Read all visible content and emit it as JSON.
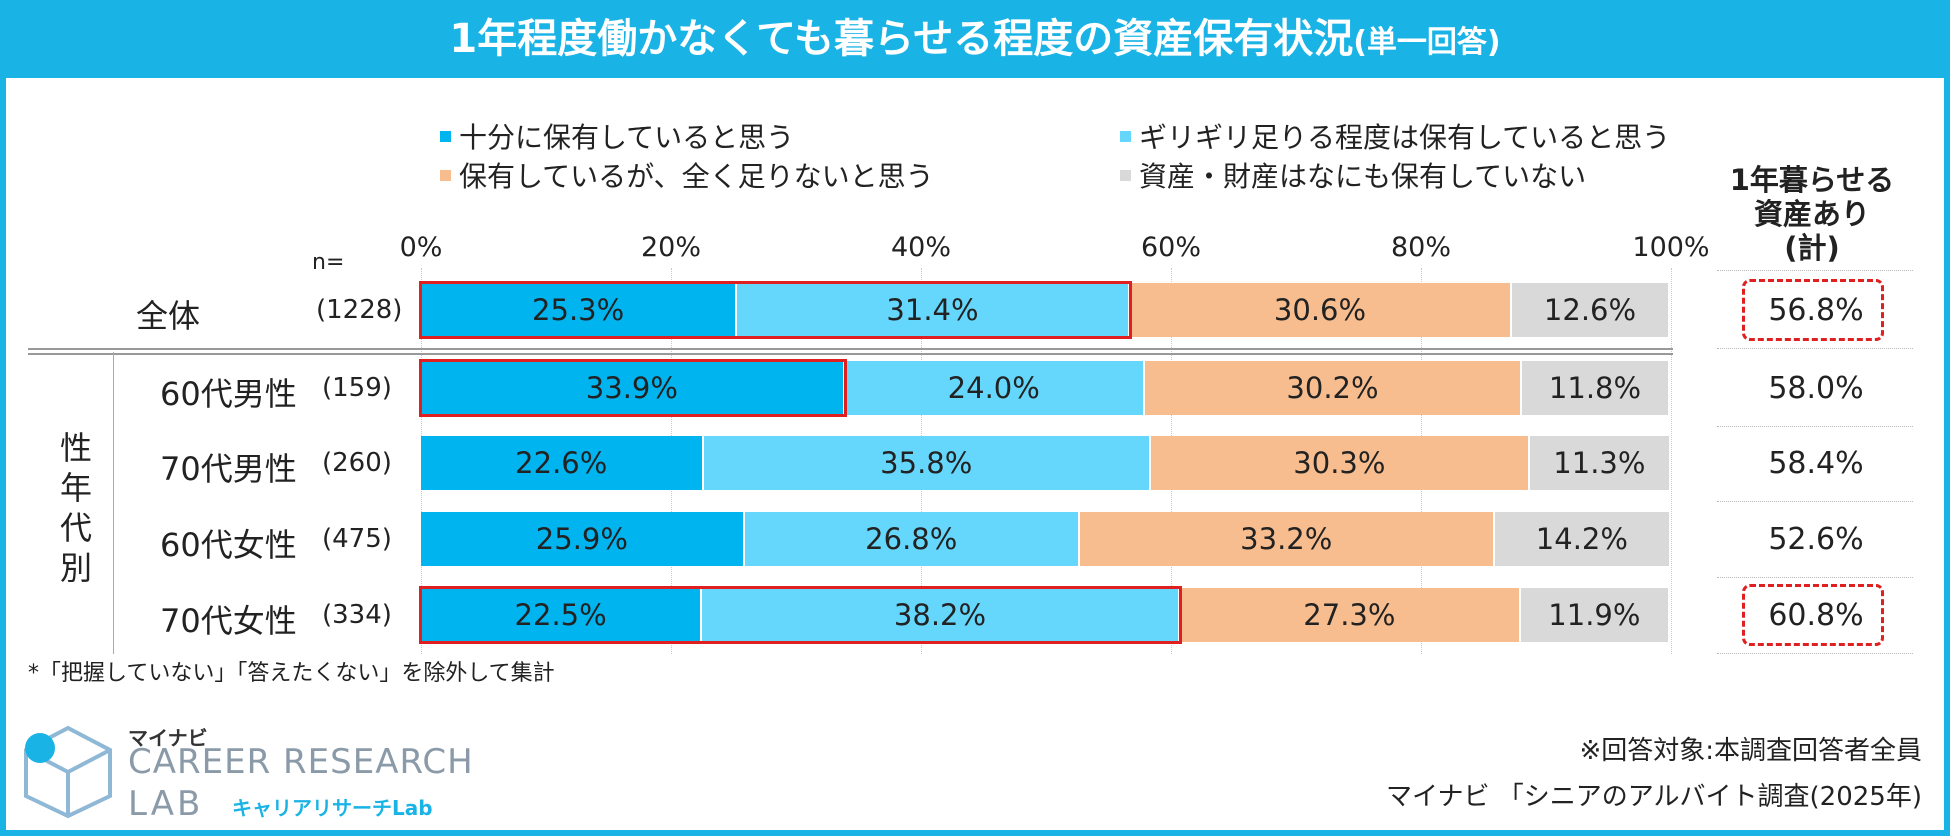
{
  "title": "1年程度働かなくても暮らせる程度の資産保有状況",
  "title_sub": "(単一回答)",
  "chart_data": {
    "type": "bar",
    "orientation": "horizontal-stacked-100",
    "xlim": [
      0,
      100
    ],
    "ticks": [
      "0%",
      "20%",
      "40%",
      "60%",
      "80%",
      "100%"
    ],
    "n_label": "n=",
    "legend": [
      {
        "label": "十分に保有していると思う",
        "color": "#00b4ef"
      },
      {
        "label": "ギリギリ足りる程度は保有していると思う",
        "color": "#66d7fc"
      },
      {
        "label": "保有しているが、全く足りないと思う",
        "color": "#f7bd8f"
      },
      {
        "label": "資産・財産はなにも保有していない",
        "color": "#d9d9d9"
      }
    ],
    "group_label": "性年代別",
    "rows": [
      {
        "label": "全体",
        "n": "(1228)",
        "values": [
          25.3,
          31.4,
          30.6,
          12.6
        ],
        "texts": [
          "25.3%",
          "31.4%",
          "30.6%",
          "12.6%"
        ],
        "sum": "56.8%",
        "highlight_segments": 2,
        "sum_highlight": true
      },
      {
        "label": "60代男性",
        "n": "(159)",
        "values": [
          33.9,
          24.0,
          30.2,
          11.8
        ],
        "texts": [
          "33.9%",
          "24.0%",
          "30.2%",
          "11.8%"
        ],
        "sum": "58.0%",
        "highlight_segments": 1,
        "sum_highlight": false
      },
      {
        "label": "70代男性",
        "n": "(260)",
        "values": [
          22.6,
          35.8,
          30.3,
          11.3
        ],
        "texts": [
          "22.6%",
          "35.8%",
          "30.3%",
          "11.3%"
        ],
        "sum": "58.4%",
        "highlight_segments": 0,
        "sum_highlight": false
      },
      {
        "label": "60代女性",
        "n": "(475)",
        "values": [
          25.9,
          26.8,
          33.2,
          14.2
        ],
        "texts": [
          "25.9%",
          "26.8%",
          "33.2%",
          "14.2%"
        ],
        "sum": "52.6%",
        "highlight_segments": 0,
        "sum_highlight": false
      },
      {
        "label": "70代女性",
        "n": "(334)",
        "values": [
          22.5,
          38.2,
          27.3,
          11.9
        ],
        "texts": [
          "22.5%",
          "38.2%",
          "27.3%",
          "11.9%"
        ],
        "sum": "60.8%",
        "highlight_segments": 2,
        "sum_highlight": true
      }
    ],
    "sum_header_lines": [
      "1年暮らせる",
      "資産あり",
      "(計)"
    ]
  },
  "footnote": "*「把握していない」「答えたくない」を除外して集計",
  "credit_line1": "※回答対象:本調査回答者全員",
  "credit_line2": "マイナビ 「シニアのアルバイト調査(2025年)",
  "logo": {
    "small": "マイナビ",
    "big": "CAREER RESEARCH",
    "lab": "LAB",
    "sub": "キャリアリサーチLab"
  }
}
